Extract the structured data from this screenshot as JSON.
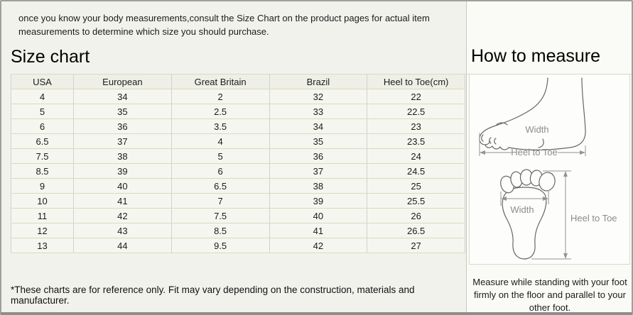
{
  "intro": {
    "text": "once you know your body measurements,consult the Size Chart on the product pages for actual item measurements to determine which size you should purchase."
  },
  "size_chart": {
    "title": "Size chart",
    "columns": [
      "USA",
      "European",
      "Great Britain",
      "Brazil",
      "Heel to Toe(cm)"
    ],
    "rows": [
      [
        "4",
        "34",
        "2",
        "32",
        "22"
      ],
      [
        "5",
        "35",
        "2.5",
        "33",
        "22.5"
      ],
      [
        "6",
        "36",
        "3.5",
        "34",
        "23"
      ],
      [
        "6.5",
        "37",
        "4",
        "35",
        "23.5"
      ],
      [
        "7.5",
        "38",
        "5",
        "36",
        "24"
      ],
      [
        "8.5",
        "39",
        "6",
        "37",
        "24.5"
      ],
      [
        "9",
        "40",
        "6.5",
        "38",
        "25"
      ],
      [
        "10",
        "41",
        "7",
        "39",
        "25.5"
      ],
      [
        "11",
        "42",
        "7.5",
        "40",
        "26"
      ],
      [
        "12",
        "43",
        "8.5",
        "41",
        "26.5"
      ],
      [
        "13",
        "44",
        "9.5",
        "42",
        "27"
      ]
    ],
    "footnote": "*These charts are for reference only. Fit may vary depending on the construction, materials and manufacturer."
  },
  "how_to_measure": {
    "title": "How to measure",
    "side_view": {
      "width_label": "Width",
      "length_label": "Heel to Toe"
    },
    "sole_view": {
      "width_label": "Width",
      "length_label": "Heel to Toe"
    },
    "note": "Measure while standing with your foot firmly on the floor and parallel to your other foot."
  },
  "colors": {
    "page_bg": "#f2f2ed",
    "table_cell_bg": "#f6f6f0",
    "table_header_bg": "#efefe8",
    "horizontal_border": "#d9dabd",
    "vertical_border": "#ced2d5",
    "frame_border": "#a0a09b",
    "diagram_line": "#666666",
    "dimension_line": "#949494",
    "text": "#1b1b1b"
  }
}
